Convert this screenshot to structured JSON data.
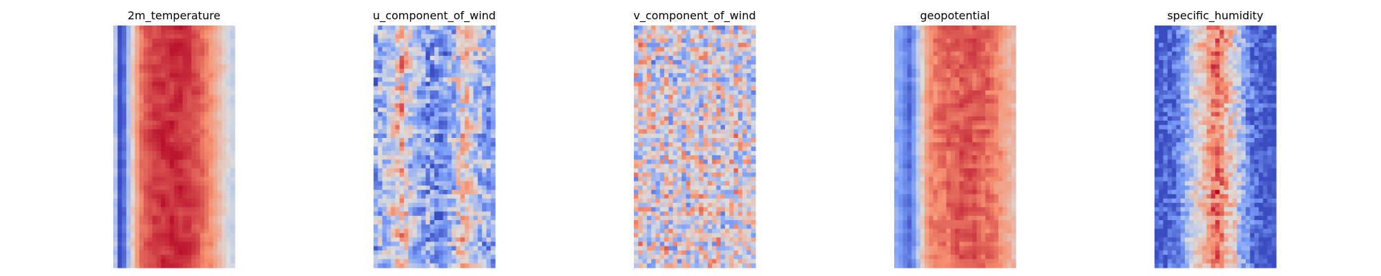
{
  "chart_data": [
    {
      "type": "heatmap",
      "title": "2m_temperature",
      "colormap": "coolwarm",
      "grid": false,
      "axes": "off",
      "description_profile": "latitude-like band: blue edges, warm red interior",
      "grid_size": [
        56,
        28
      ],
      "value_range": [
        0,
        1
      ],
      "column_profile": [
        0.4,
        0.0,
        0.1,
        0.38,
        0.56,
        0.7,
        0.8,
        0.85,
        0.88,
        0.9,
        0.91,
        0.92,
        0.92,
        0.93,
        0.93,
        0.92,
        0.91,
        0.9,
        0.88,
        0.86,
        0.82,
        0.78,
        0.74,
        0.68,
        0.62,
        0.56,
        0.5,
        0.45
      ]
    },
    {
      "type": "heatmap",
      "title": "u_component_of_wind",
      "colormap": "coolwarm",
      "grid": false,
      "axes": "off",
      "grid_size": [
        56,
        28
      ],
      "value_range": [
        0,
        1
      ],
      "column_profile": [
        0.28,
        0.32,
        0.36,
        0.44,
        0.52,
        0.6,
        0.62,
        0.52,
        0.4,
        0.34,
        0.3,
        0.28,
        0.26,
        0.24,
        0.22,
        0.22,
        0.26,
        0.32,
        0.38,
        0.46,
        0.56,
        0.58,
        0.48,
        0.4,
        0.36,
        0.32,
        0.3,
        0.28
      ]
    },
    {
      "type": "heatmap",
      "title": "v_component_of_wind",
      "colormap": "coolwarm",
      "grid": false,
      "axes": "off",
      "grid_size": [
        56,
        28
      ],
      "value_range": [
        0,
        1
      ],
      "column_profile": [
        0.5,
        0.52,
        0.5,
        0.48,
        0.46,
        0.48,
        0.5,
        0.52,
        0.5,
        0.48,
        0.46,
        0.48,
        0.5,
        0.52,
        0.5,
        0.48,
        0.5,
        0.52,
        0.5,
        0.48,
        0.46,
        0.48,
        0.5,
        0.52,
        0.5,
        0.48,
        0.46,
        0.48
      ]
    },
    {
      "type": "heatmap",
      "title": "geopotential",
      "colormap": "coolwarm",
      "grid": false,
      "axes": "off",
      "grid_size": [
        56,
        28
      ],
      "value_range": [
        0,
        1
      ],
      "column_profile": [
        0.3,
        0.26,
        0.18,
        0.1,
        0.22,
        0.4,
        0.58,
        0.7,
        0.76,
        0.78,
        0.8,
        0.81,
        0.82,
        0.83,
        0.84,
        0.85,
        0.86,
        0.86,
        0.85,
        0.84,
        0.83,
        0.82,
        0.8,
        0.77,
        0.74,
        0.7,
        0.66,
        0.62
      ]
    },
    {
      "type": "heatmap",
      "title": "specific_humidity",
      "colormap": "coolwarm",
      "grid": false,
      "axes": "off",
      "grid_size": [
        56,
        28
      ],
      "value_range": [
        0,
        1
      ],
      "column_profile": [
        0.02,
        0.03,
        0.05,
        0.08,
        0.12,
        0.18,
        0.26,
        0.34,
        0.42,
        0.5,
        0.56,
        0.62,
        0.7,
        0.78,
        0.82,
        0.76,
        0.66,
        0.58,
        0.5,
        0.4,
        0.3,
        0.2,
        0.12,
        0.08,
        0.05,
        0.03,
        0.02,
        0.02
      ]
    }
  ]
}
